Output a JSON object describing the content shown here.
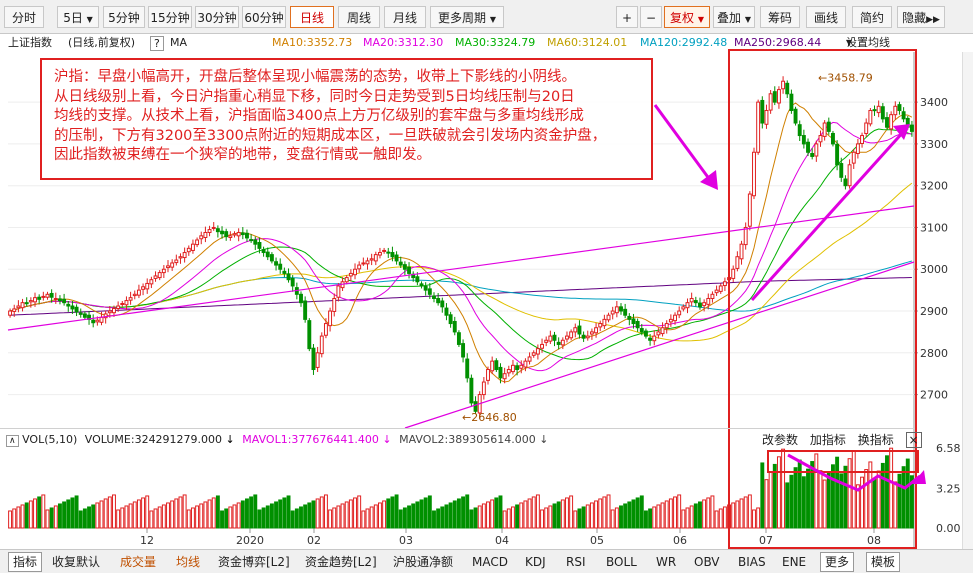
{
  "toolbar": {
    "items": [
      "分时",
      "5日",
      "5分钟",
      "15分钟",
      "30分钟",
      "60分钟",
      "日线",
      "周线",
      "月线",
      "更多周期",
      "+",
      "−",
      "复权",
      "叠加",
      "筹码",
      "画线",
      "简约",
      "隐藏"
    ],
    "active": "日线",
    "fuquan": "复权"
  },
  "info": {
    "title": "上证指数",
    "mode": "(日线,前复权)",
    "help": "?",
    "indicator": "MA",
    "ma10": "MA10:3352.73",
    "ma20": "MA20:3312.30",
    "ma30": "MA30:3324.79",
    "ma60": "MA60:3124.01",
    "ma120": "MA120:2992.48",
    "ma250": "MA250:2968.44",
    "setup": "设置均线"
  },
  "colors": {
    "ma10": "#d08000",
    "ma20": "#e000e0",
    "ma30": "#00b000",
    "ma60": "#e0c000",
    "ma120": "#00a0c0",
    "ma250": "#600080",
    "up": "#e02020",
    "down": "#009000",
    "annotation": "#e02020",
    "channel": "#e000e0"
  },
  "annotation": {
    "lines": [
      "沪指：早盘小幅高开，开盘后整体呈现小幅震荡的态势，收带上下影线的小阴线。",
      "从日线级别上看，今日沪指重心稍显下移，同时今日走势受到5日均线压制与20日",
      "均线的支撑。从技术上看，沪指面临3400点上方万亿级别的套牢盘与多重均线形成",
      "的压制，下方有3200至3300点附近的短期成本区，一旦跌破就会引发场内资金护盘，",
      "因此指数被束缚在一个狭窄的地带，变盘行情或一触即发。"
    ]
  },
  "volume": {
    "label": "VOL(5,10)",
    "value": "VOLUME:324291279.000",
    "mavol1": "MAVOL1:377676441.400",
    "mavol2": "MAVOL2:389305614.000",
    "buttons": [
      "改参数",
      "加指标",
      "换指标"
    ],
    "close": "×"
  },
  "bottom": {
    "tabs": [
      "指标",
      "收复默认",
      "成交量",
      "均线",
      "资金博弈[L2]",
      "资金趋势[L2]",
      "沪股通净额",
      "MACD",
      "KDJ",
      "RSI",
      "BOLL",
      "WR",
      "OBV",
      "BIAS",
      "ENE",
      "更多",
      "模板"
    ]
  },
  "chart_data": {
    "type": "candlestick",
    "price_axis": {
      "ticks": [
        3400,
        3300,
        3200,
        3100,
        3000,
        2900,
        2800,
        2700
      ],
      "range": [
        2620,
        3520
      ]
    },
    "volume_axis": {
      "ticks": [
        "6.58",
        "3.25",
        "0.00"
      ],
      "range": [
        0,
        6.58
      ]
    },
    "x_ticks": [
      "12",
      "2020",
      "02",
      "03",
      "04",
      "05",
      "06",
      "07",
      "08"
    ],
    "annotations": {
      "high": "3458.79",
      "low": "2646.80"
    },
    "close": [
      2900,
      2905,
      2912,
      2920,
      2918,
      2925,
      2932,
      2928,
      2935,
      2940,
      2933,
      2930,
      2925,
      2920,
      2912,
      2905,
      2898,
      2892,
      2885,
      2880,
      2872,
      2878,
      2885,
      2893,
      2900,
      2906,
      2912,
      2918,
      2925,
      2932,
      2940,
      2950,
      2958,
      2966,
      2975,
      2984,
      2992,
      3000,
      3008,
      3015,
      3022,
      3030,
      3040,
      3050,
      3060,
      3070,
      3080,
      3088,
      3095,
      3100,
      3090,
      3085,
      3078,
      3080,
      3085,
      3088,
      3083,
      3075,
      3070,
      3060,
      3050,
      3040,
      3030,
      3020,
      3010,
      3000,
      2990,
      2975,
      2960,
      2940,
      2920,
      2880,
      2810,
      2760,
      2800,
      2840,
      2870,
      2900,
      2930,
      2960,
      2970,
      2980,
      2990,
      3000,
      3010,
      3015,
      3020,
      3025,
      3035,
      3040,
      3045,
      3040,
      3030,
      3020,
      3010,
      3000,
      2990,
      2980,
      2970,
      2960,
      2950,
      2940,
      2930,
      2920,
      2910,
      2890,
      2870,
      2850,
      2820,
      2790,
      2740,
      2680,
      2660,
      2700,
      2730,
      2760,
      2780,
      2760,
      2740,
      2750,
      2760,
      2770,
      2760,
      2770,
      2780,
      2790,
      2800,
      2810,
      2820,
      2830,
      2840,
      2830,
      2820,
      2830,
      2840,
      2850,
      2860,
      2845,
      2835,
      2840,
      2850,
      2860,
      2870,
      2880,
      2890,
      2900,
      2910,
      2900,
      2890,
      2880,
      2870,
      2860,
      2850,
      2840,
      2830,
      2840,
      2850,
      2860,
      2870,
      2880,
      2890,
      2900,
      2910,
      2920,
      2930,
      2920,
      2910,
      2920,
      2930,
      2940,
      2950,
      2960,
      2970,
      2980,
      3000,
      3030,
      3060,
      3100,
      3180,
      3280,
      3400,
      3350,
      3380,
      3420,
      3400,
      3430,
      3450,
      3420,
      3380,
      3350,
      3320,
      3300,
      3280,
      3270,
      3300,
      3320,
      3350,
      3330,
      3300,
      3250,
      3220,
      3200,
      3250,
      3280,
      3300,
      3320,
      3350,
      3380,
      3380,
      3390,
      3360,
      3340,
      3370,
      3390,
      3380,
      3360,
      3340,
      3330
    ]
  }
}
